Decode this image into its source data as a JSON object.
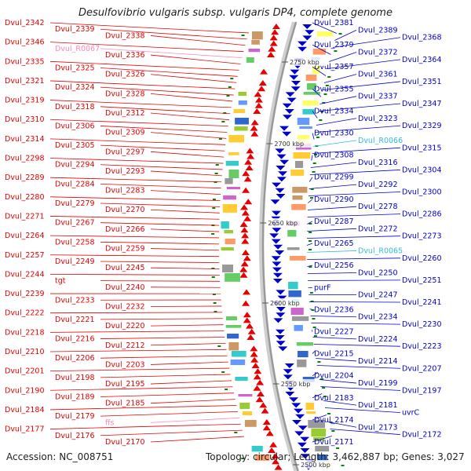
{
  "title": "Desulfovibrio vulgaris subsp. vulgaris DP4, complete genome",
  "accession": "Accession: NC_008751",
  "topology": "Topology: circular; Length: 3,462,887 bp; Genes: 3,027",
  "colors": {
    "forward": "#e60000",
    "reverse": "#0000cc",
    "rna_forward": "#ff88bb",
    "rna_reverse": "#33bbdd",
    "backbone": "#999999",
    "tick": "#008800",
    "label": "#333333"
  },
  "kbp_ticks": [
    "2750 kbp",
    "2700 kbp",
    "2650 kbp",
    "2600 kbp",
    "2550 kbp",
    "2500 kbp"
  ],
  "left_labels": [
    "Dvul_2342",
    "Dvul_2339",
    "Dvul_2338",
    "Dvul_2346",
    "Dvul_R0067",
    "Dvul_2336",
    "Dvul_2335",
    "Dvul_2325",
    "Dvul_2326",
    "Dvul_2321",
    "Dvul_2324",
    "Dvul_2328",
    "Dvul_2319",
    "Dvul_2318",
    "Dvul_2312",
    "Dvul_2310",
    "Dvul_2306",
    "Dvul_2309",
    "Dvul_2314",
    "Dvul_2305",
    "Dvul_2297",
    "Dvul_2298",
    "Dvul_2294",
    "Dvul_2293",
    "Dvul_2289",
    "Dvul_2284",
    "Dvul_2283",
    "Dvul_2280",
    "Dvul_2279",
    "Dvul_2270",
    "Dvul_2271",
    "Dvul_2267",
    "Dvul_2266",
    "Dvul_2264",
    "Dvul_2258",
    "Dvul_2259",
    "Dvul_2257",
    "Dvul_2249",
    "Dvul_2245",
    "Dvul_2244",
    "tgt",
    "Dvul_2240",
    "Dvul_2239",
    "Dvul_2233",
    "Dvul_2232",
    "Dvul_2222",
    "Dvul_2221",
    "Dvul_2220",
    "Dvul_2218",
    "Dvul_2216",
    "Dvul_2212",
    "Dvul_2210",
    "Dvul_2206",
    "Dvul_2203",
    "Dvul_2201",
    "Dvul_2198",
    "Dvul_2195",
    "Dvul_2190",
    "Dvul_2189",
    "Dvul_2185",
    "Dvul_2184",
    "Dvul_2179",
    "ffs",
    "Dvul_2177",
    "Dvul_2176",
    "Dvul_2170"
  ],
  "right_labels": [
    "Dvul_2381",
    "Dvul_2389",
    "Dvul_2368",
    "Dvul_2379",
    "Dvul_2372",
    "Dvul_2364",
    "Dvul_2357",
    "Dvul_2361",
    "Dvul_2351",
    "Dvul_2355",
    "Dvul_2337",
    "Dvul_2347",
    "Dvul_2334",
    "Dvul_2323",
    "Dvul_2329",
    "Dvul_2330",
    "Dvul_R0066",
    "Dvul_2315",
    "Dvul_2308",
    "Dvul_2316",
    "Dvul_2304",
    "Dvul_2299",
    "Dvul_2292",
    "Dvul_2300",
    "Dvul_2290",
    "Dvul_2278",
    "Dvul_2286",
    "Dvul_2287",
    "Dvul_2272",
    "Dvul_2273",
    "Dvul_2265",
    "Dvul_R0065",
    "Dvul_2260",
    "Dvul_2256",
    "Dvul_2250",
    "Dvul_2251",
    "purF",
    "Dvul_2247",
    "Dvul_2241",
    "Dvul_2236",
    "Dvul_2234",
    "Dvul_2230",
    "Dvul_2227",
    "Dvul_2224",
    "Dvul_2223",
    "Dvul_2215",
    "Dvul_2214",
    "Dvul_2207",
    "Dvul_2204",
    "Dvul_2199",
    "Dvul_2197",
    "Dvul_2183",
    "Dvul_2181",
    "uvrC",
    "Dvul_2174",
    "Dvul_2173",
    "Dvul_2172",
    "Dvul_2171"
  ]
}
